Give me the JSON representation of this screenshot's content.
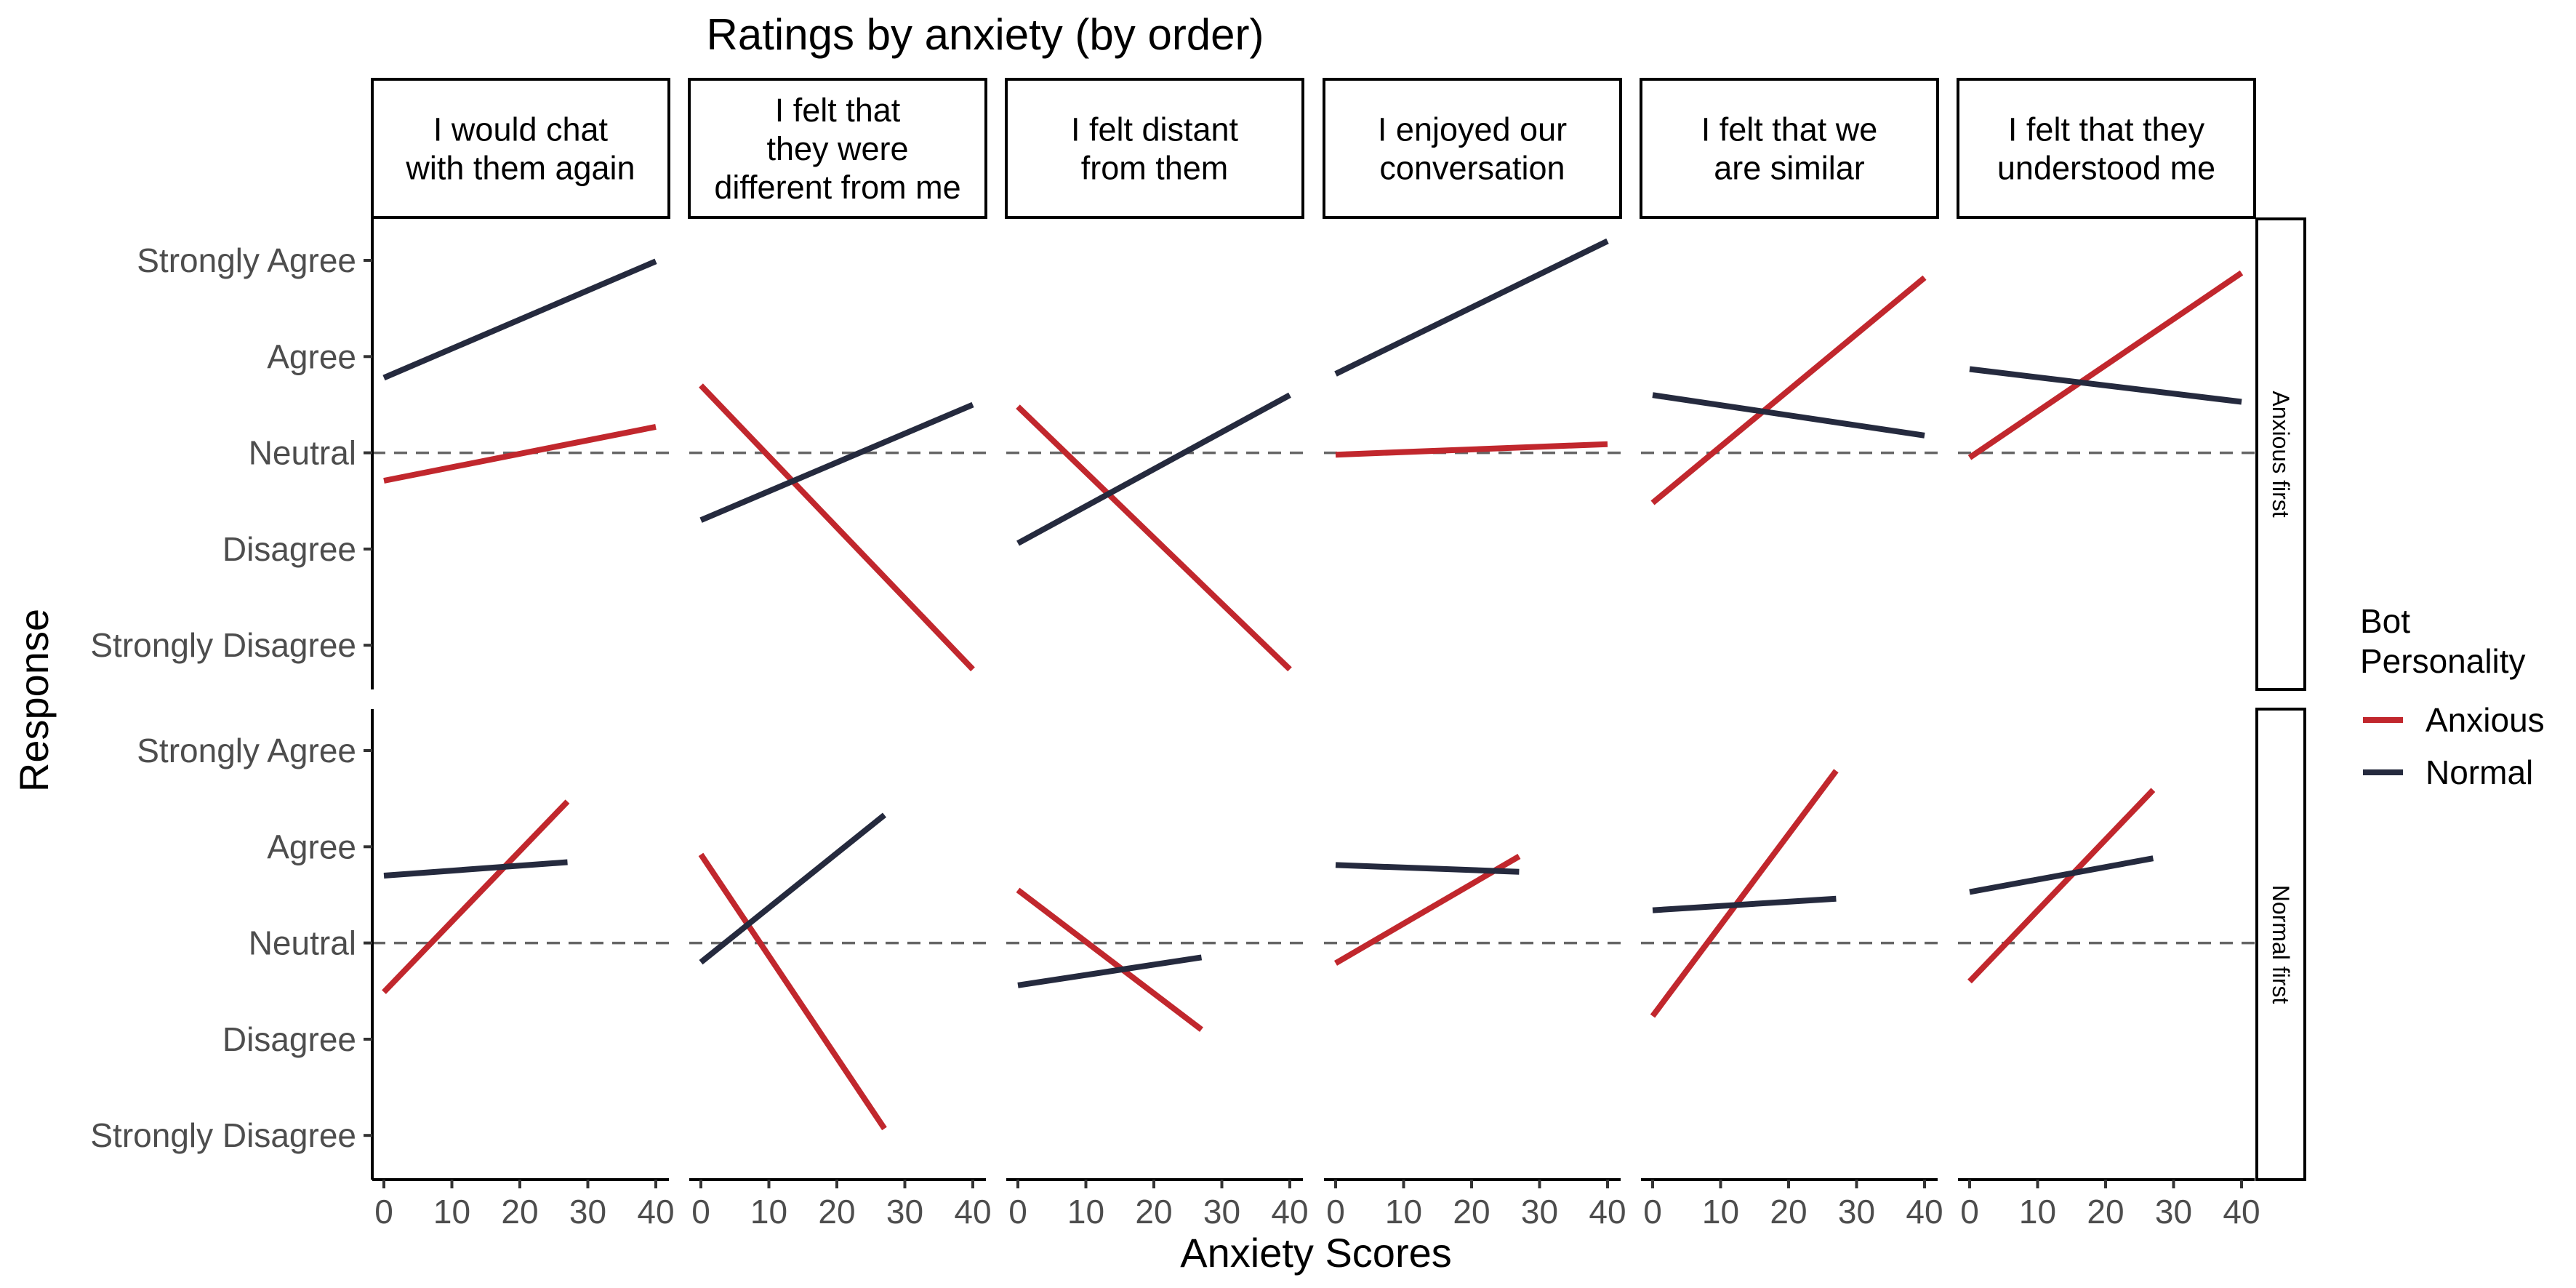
{
  "chart_data": {
    "type": "line",
    "title": "Ratings by anxiety (by order)",
    "xlabel": "Anxiety Scores",
    "ylabel": "Response",
    "xlim": [
      0,
      40
    ],
    "x_ticks": [
      0,
      10,
      20,
      30,
      40
    ],
    "y_levels": [
      "Strongly Disagree",
      "Disagree",
      "Neutral",
      "Agree",
      "Strongly Agree"
    ],
    "y_level_values": [
      1,
      2,
      3,
      4,
      5
    ],
    "reference_line": 3,
    "grid": false,
    "facet_columns": [
      "I would chat with them again",
      "I felt that they were different from me",
      "I felt distant from them",
      "I enjoyed our conversation",
      "I felt that we are similar",
      "I felt that they understood me"
    ],
    "facet_rows": [
      "Anxious first",
      "Normal first"
    ],
    "legend": {
      "title": "Bot Personality",
      "position": "right",
      "entries": [
        {
          "name": "Anxious",
          "color": "#c1272d"
        },
        {
          "name": "Normal",
          "color": "#252a3e"
        }
      ]
    },
    "panels": [
      {
        "row": "Anxious first",
        "column": "I would chat with them again",
        "series": [
          {
            "name": "Anxious",
            "x": [
              0,
              40
            ],
            "y": [
              2.71,
              3.27
            ]
          },
          {
            "name": "Normal",
            "x": [
              0,
              40
            ],
            "y": [
              3.78,
              4.99
            ]
          }
        ]
      },
      {
        "row": "Anxious first",
        "column": "I felt that they were different from me",
        "series": [
          {
            "name": "Anxious",
            "x": [
              0,
              40
            ],
            "y": [
              3.7,
              0.75
            ]
          },
          {
            "name": "Normal",
            "x": [
              0,
              40
            ],
            "y": [
              2.3,
              3.5
            ]
          }
        ]
      },
      {
        "row": "Anxious first",
        "column": "I felt distant from them",
        "series": [
          {
            "name": "Anxious",
            "x": [
              0,
              40
            ],
            "y": [
              3.48,
              0.75
            ]
          },
          {
            "name": "Normal",
            "x": [
              0,
              40
            ],
            "y": [
              2.06,
              3.6
            ]
          }
        ]
      },
      {
        "row": "Anxious first",
        "column": "I enjoyed our conversation",
        "series": [
          {
            "name": "Anxious",
            "x": [
              0,
              40
            ],
            "y": [
              2.98,
              3.09
            ]
          },
          {
            "name": "Normal",
            "x": [
              0,
              40
            ],
            "y": [
              3.82,
              5.2
            ]
          }
        ]
      },
      {
        "row": "Anxious first",
        "column": "I felt that we are similar",
        "series": [
          {
            "name": "Anxious",
            "x": [
              0,
              40
            ],
            "y": [
              2.48,
              4.82
            ]
          },
          {
            "name": "Normal",
            "x": [
              0,
              40
            ],
            "y": [
              3.6,
              3.18
            ]
          }
        ]
      },
      {
        "row": "Anxious first",
        "column": "I felt that they understood me",
        "series": [
          {
            "name": "Anxious",
            "x": [
              0,
              40
            ],
            "y": [
              2.95,
              4.87
            ]
          },
          {
            "name": "Normal",
            "x": [
              0,
              40
            ],
            "y": [
              3.87,
              3.53
            ]
          }
        ]
      },
      {
        "row": "Normal first",
        "column": "I would chat with them again",
        "series": [
          {
            "name": "Anxious",
            "x": [
              0,
              27
            ],
            "y": [
              2.49,
              4.47
            ]
          },
          {
            "name": "Normal",
            "x": [
              0,
              27
            ],
            "y": [
              3.7,
              3.84
            ]
          }
        ]
      },
      {
        "row": "Normal first",
        "column": "I felt that they were different from me",
        "series": [
          {
            "name": "Anxious",
            "x": [
              0,
              27
            ],
            "y": [
              3.92,
              1.07
            ]
          },
          {
            "name": "Normal",
            "x": [
              0,
              27
            ],
            "y": [
              2.8,
              4.33
            ]
          }
        ]
      },
      {
        "row": "Normal first",
        "column": "I felt distant from them",
        "series": [
          {
            "name": "Anxious",
            "x": [
              0,
              27
            ],
            "y": [
              3.55,
              2.1
            ]
          },
          {
            "name": "Normal",
            "x": [
              0,
              27
            ],
            "y": [
              2.56,
              2.85
            ]
          }
        ]
      },
      {
        "row": "Normal first",
        "column": "I enjoyed our conversation",
        "series": [
          {
            "name": "Anxious",
            "x": [
              0,
              27
            ],
            "y": [
              2.79,
              3.9
            ]
          },
          {
            "name": "Normal",
            "x": [
              0,
              27
            ],
            "y": [
              3.81,
              3.74
            ]
          }
        ]
      },
      {
        "row": "Normal first",
        "column": "I felt that we are similar",
        "series": [
          {
            "name": "Anxious",
            "x": [
              0,
              27
            ],
            "y": [
              2.24,
              4.79
            ]
          },
          {
            "name": "Normal",
            "x": [
              0,
              27
            ],
            "y": [
              3.34,
              3.46
            ]
          }
        ]
      },
      {
        "row": "Normal first",
        "column": "I felt that they understood me",
        "series": [
          {
            "name": "Anxious",
            "x": [
              0,
              27
            ],
            "y": [
              2.6,
              4.59
            ]
          },
          {
            "name": "Normal",
            "x": [
              0,
              27
            ],
            "y": [
              3.53,
              3.88
            ]
          }
        ]
      }
    ]
  }
}
